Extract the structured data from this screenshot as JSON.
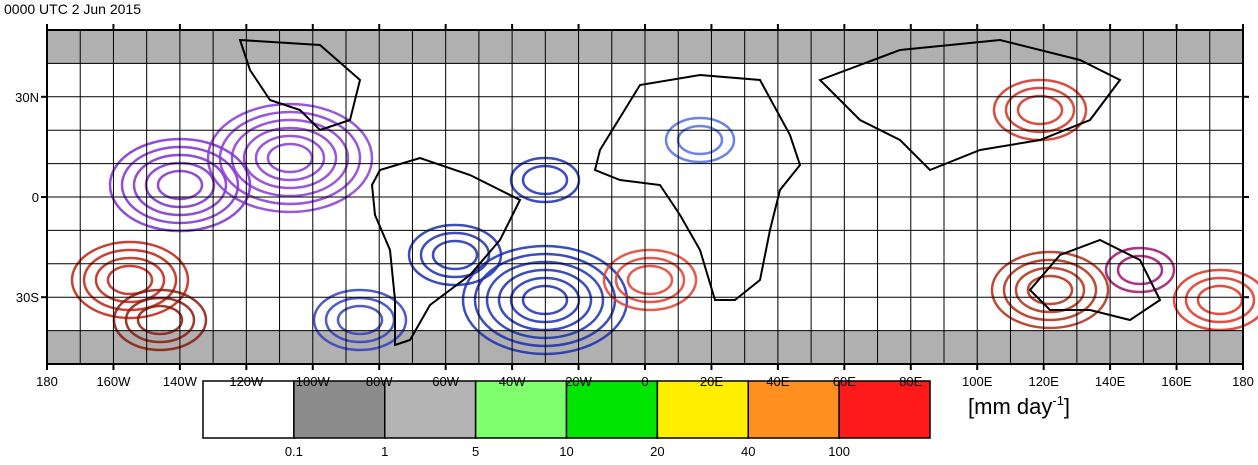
{
  "title": "0000 UTC 2 Jun 2015",
  "lon_ticks": [
    {
      "value": -180,
      "label": "180"
    },
    {
      "value": -160,
      "label": "160W"
    },
    {
      "value": -140,
      "label": "140W"
    },
    {
      "value": -120,
      "label": "120W"
    },
    {
      "value": -100,
      "label": "100W"
    },
    {
      "value": -80,
      "label": "80W"
    },
    {
      "value": -60,
      "label": "60W"
    },
    {
      "value": -40,
      "label": "40W"
    },
    {
      "value": -20,
      "label": "20W"
    },
    {
      "value": 0,
      "label": "0"
    },
    {
      "value": 20,
      "label": "20E"
    },
    {
      "value": 40,
      "label": "40E"
    },
    {
      "value": 60,
      "label": "60E"
    },
    {
      "value": 80,
      "label": "80E"
    },
    {
      "value": 100,
      "label": "100E"
    },
    {
      "value": 120,
      "label": "120E"
    },
    {
      "value": 140,
      "label": "140E"
    },
    {
      "value": 160,
      "label": "160E"
    },
    {
      "value": 180,
      "label": "180"
    }
  ],
  "lat_ticks": [
    {
      "value": 30,
      "label": "30N"
    },
    {
      "value": 0,
      "label": "0"
    },
    {
      "value": -30,
      "label": "30S"
    }
  ],
  "legend": {
    "levels": [
      0.1,
      1,
      5,
      10,
      20,
      40,
      100
    ],
    "colors": [
      "#ffffff",
      "#8c8c8c",
      "#b4b4b4",
      "#80ff6e",
      "#00e600",
      "#ffee00",
      "#ff9020",
      "#ff1a1a"
    ],
    "unit": {
      "text": "[mm day",
      "superscript": "-1",
      "close": "]"
    }
  }
}
